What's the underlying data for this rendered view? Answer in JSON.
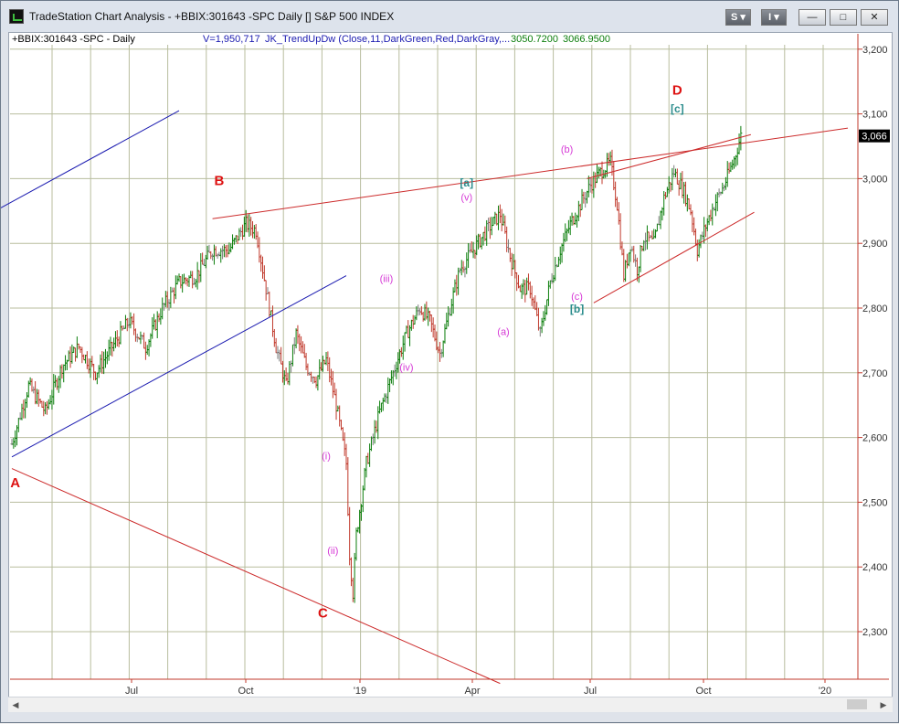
{
  "window": {
    "title": "TradeStation Chart Analysis - +BBIX:301643 -SPC Daily [] S&P 500 INDEX",
    "btn_s": "S",
    "btn_i": "I",
    "min_glyph": "—",
    "max_glyph": "□",
    "close_glyph": "✕"
  },
  "chart_header": {
    "symbol": "+BBIX:301643 -SPC - Daily",
    "volume": "V=1,950,717",
    "indicator": "JK_TrendUpDw (Close,11,DarkGreen,Red,DarkGray,...",
    "value1": "3050.7200",
    "value2": "3066.9500"
  },
  "colors": {
    "up_bar": "#0a7d0a",
    "down_bar": "#c0392b",
    "neutral_bar": "#7f7f7f",
    "trend_line_red": "#cc2a2a",
    "trend_line_blue": "#1a1ab0",
    "wave_major": "#dd1111",
    "wave_minor": "#d63ad6",
    "wave_bracket": "#2a8c8c",
    "grid": "#b8bd9e",
    "axis": "#c0392b"
  },
  "chart_data": {
    "type": "ohlc-bar",
    "title": "S&P 500 INDEX",
    "ylim": [
      2225,
      3260
    ],
    "y_ticks": [
      "3,200",
      "3,100",
      "3,000",
      "2,900",
      "2,800",
      "2,700",
      "2,600",
      "2,500",
      "2,400",
      "2,300"
    ],
    "y_tick_values": [
      3200,
      3100,
      3000,
      2900,
      2800,
      2700,
      2600,
      2500,
      2400,
      2300
    ],
    "last_price": "3,066",
    "x_ticks": [
      "Jul",
      "Oct",
      "'19",
      "Apr",
      "Jul",
      "Oct",
      "'20"
    ],
    "close_path": [
      {
        "t": 0,
        "v": 2590
      },
      {
        "t": 5,
        "v": 2680
      },
      {
        "t": 10,
        "v": 2640
      },
      {
        "t": 15,
        "v": 2710
      },
      {
        "t": 20,
        "v": 2740
      },
      {
        "t": 25,
        "v": 2700
      },
      {
        "t": 30,
        "v": 2740
      },
      {
        "t": 35,
        "v": 2780
      },
      {
        "t": 40,
        "v": 2740
      },
      {
        "t": 45,
        "v": 2800
      },
      {
        "t": 50,
        "v": 2840
      },
      {
        "t": 55,
        "v": 2850
      },
      {
        "t": 60,
        "v": 2890
      },
      {
        "t": 65,
        "v": 2890
      },
      {
        "t": 70,
        "v": 2930
      },
      {
        "t": 73,
        "v": 2920
      },
      {
        "t": 76,
        "v": 2830
      },
      {
        "t": 79,
        "v": 2740
      },
      {
        "t": 82,
        "v": 2680
      },
      {
        "t": 85,
        "v": 2760
      },
      {
        "t": 88,
        "v": 2710
      },
      {
        "t": 91,
        "v": 2690
      },
      {
        "t": 94,
        "v": 2720
      },
      {
        "t": 97,
        "v": 2650
      },
      {
        "t": 100,
        "v": 2560
      },
      {
        "t": 101,
        "v": 2420
      },
      {
        "t": 102,
        "v": 2360
      },
      {
        "t": 103,
        "v": 2450
      },
      {
        "t": 106,
        "v": 2560
      },
      {
        "t": 110,
        "v": 2640
      },
      {
        "t": 114,
        "v": 2700
      },
      {
        "t": 118,
        "v": 2760
      },
      {
        "t": 122,
        "v": 2800
      },
      {
        "t": 125,
        "v": 2780
      },
      {
        "t": 128,
        "v": 2730
      },
      {
        "t": 131,
        "v": 2800
      },
      {
        "t": 134,
        "v": 2860
      },
      {
        "t": 138,
        "v": 2890
      },
      {
        "t": 142,
        "v": 2920
      },
      {
        "t": 146,
        "v": 2945
      },
      {
        "t": 149,
        "v": 2880
      },
      {
        "t": 152,
        "v": 2830
      },
      {
        "t": 155,
        "v": 2830
      },
      {
        "t": 158,
        "v": 2760
      },
      {
        "t": 161,
        "v": 2840
      },
      {
        "t": 164,
        "v": 2890
      },
      {
        "t": 167,
        "v": 2930
      },
      {
        "t": 170,
        "v": 2960
      },
      {
        "t": 173,
        "v": 2990
      },
      {
        "t": 176,
        "v": 3010
      },
      {
        "t": 179,
        "v": 3025
      },
      {
        "t": 181,
        "v": 2960
      },
      {
        "t": 183,
        "v": 2850
      },
      {
        "t": 185,
        "v": 2900
      },
      {
        "t": 187,
        "v": 2860
      },
      {
        "t": 189,
        "v": 2910
      },
      {
        "t": 192,
        "v": 2900
      },
      {
        "t": 195,
        "v": 2970
      },
      {
        "t": 198,
        "v": 3010
      },
      {
        "t": 201,
        "v": 2980
      },
      {
        "t": 203,
        "v": 2950
      },
      {
        "t": 205,
        "v": 2890
      },
      {
        "t": 207,
        "v": 2920
      },
      {
        "t": 210,
        "v": 2960
      },
      {
        "t": 213,
        "v": 2990
      },
      {
        "t": 216,
        "v": 3030
      },
      {
        "t": 218,
        "v": 3066
      }
    ],
    "trend_lines": [
      {
        "name": "upper-channel",
        "color": "red",
        "points": [
          [
            60,
            2938
          ],
          [
            250,
            3078
          ]
        ]
      },
      {
        "name": "lower-channel-A-C",
        "color": "red",
        "points": [
          [
            0,
            2552
          ],
          [
            146,
            2220
          ]
        ]
      },
      {
        "name": "blue-upper",
        "color": "blue",
        "points": [
          [
            -5,
            2950
          ],
          [
            50,
            3105
          ]
        ]
      },
      {
        "name": "blue-lower",
        "color": "blue",
        "points": [
          [
            0,
            2570
          ],
          [
            100,
            2850
          ]
        ]
      },
      {
        "name": "wedge-top",
        "color": "red",
        "points": [
          [
            172,
            3000
          ],
          [
            221,
            3068
          ]
        ]
      },
      {
        "name": "wedge-bottom",
        "color": "red",
        "points": [
          [
            174,
            2808
          ],
          [
            222,
            2948
          ]
        ]
      }
    ],
    "annotations": [
      {
        "text": "A",
        "t": 1,
        "v": 2523,
        "kind": "major"
      },
      {
        "text": "B",
        "t": 62,
        "v": 2990,
        "kind": "major"
      },
      {
        "text": "C",
        "t": 93,
        "v": 2322,
        "kind": "major"
      },
      {
        "text": "D",
        "t": 199,
        "v": 3130,
        "kind": "major"
      },
      {
        "text": "(i)",
        "t": 94,
        "v": 2566,
        "kind": "minor"
      },
      {
        "text": "(ii)",
        "t": 96,
        "v": 2420,
        "kind": "minor"
      },
      {
        "text": "(iii)",
        "t": 112,
        "v": 2840,
        "kind": "minor"
      },
      {
        "text": "(iv)",
        "t": 118,
        "v": 2703,
        "kind": "minor"
      },
      {
        "text": "(v)",
        "t": 136,
        "v": 2966,
        "kind": "minor"
      },
      {
        "text": "(a)",
        "t": 147,
        "v": 2758,
        "kind": "minor"
      },
      {
        "text": "(b)",
        "t": 166,
        "v": 3040,
        "kind": "minor"
      },
      {
        "text": "(c)",
        "t": 169,
        "v": 2813,
        "kind": "minor"
      },
      {
        "text": "[a]",
        "t": 136,
        "v": 2988,
        "kind": "bracket"
      },
      {
        "text": "[b]",
        "t": 169,
        "v": 2793,
        "kind": "bracket"
      },
      {
        "text": "[c]",
        "t": 199,
        "v": 3102,
        "kind": "bracket"
      }
    ]
  }
}
